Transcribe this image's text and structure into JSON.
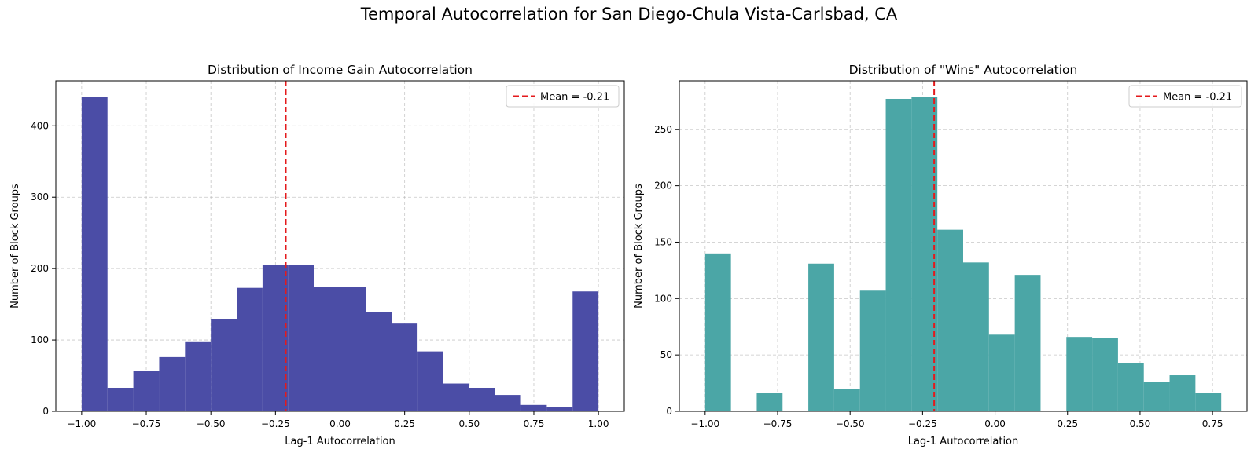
{
  "figure": {
    "title": "Temporal Autocorrelation for San Diego-Chula Vista-Carlsbad, CA"
  },
  "chart_data": [
    {
      "type": "bar",
      "title": "Distribution of Income Gain Autocorrelation",
      "xlabel": "Lag-1 Autocorrelation",
      "ylabel": "Number of Block Groups",
      "color": "#4b4da6",
      "bin_edges": [
        -1.0,
        -0.9,
        -0.8,
        -0.7,
        -0.6,
        -0.5,
        -0.4,
        -0.3,
        -0.2,
        -0.1,
        0.0,
        0.1,
        0.2,
        0.3,
        0.4,
        0.5,
        0.6,
        0.7,
        0.8,
        0.9,
        1.0
      ],
      "values": [
        441,
        33,
        57,
        76,
        97,
        129,
        173,
        205,
        205,
        174,
        174,
        139,
        123,
        84,
        39,
        33,
        23,
        9,
        6,
        168
      ],
      "xlim": [
        -1.1,
        1.1
      ],
      "ylim": [
        0,
        463
      ],
      "xticks": [
        -1.0,
        -0.75,
        -0.5,
        -0.25,
        0.0,
        0.25,
        0.5,
        0.75,
        1.0
      ],
      "xtick_labels": [
        "−1.00",
        "−0.75",
        "−0.50",
        "−0.25",
        "0.00",
        "0.25",
        "0.50",
        "0.75",
        "1.00"
      ],
      "yticks": [
        0,
        100,
        200,
        300,
        400
      ],
      "ytick_labels": [
        "0",
        "100",
        "200",
        "300",
        "400"
      ],
      "mean_line": {
        "x": -0.21,
        "color": "#e41a1c"
      },
      "legend": {
        "label": "Mean = -0.21",
        "position": "upper right"
      },
      "grid": true
    },
    {
      "type": "bar",
      "title": "Distribution of \"Wins\" Autocorrelation",
      "xlabel": "Lag-1 Autocorrelation",
      "ylabel": "Number of Block Groups",
      "color": "#4ba6a6",
      "bin_edges": [
        -1.0,
        -0.911,
        -0.822,
        -0.733,
        -0.644,
        -0.555,
        -0.466,
        -0.377,
        -0.288,
        -0.199,
        -0.11,
        -0.021,
        0.068,
        0.157,
        0.246,
        0.335,
        0.424,
        0.513,
        0.602,
        0.691,
        0.78
      ],
      "values": [
        140,
        0,
        16,
        0,
        131,
        20,
        107,
        277,
        279,
        161,
        132,
        68,
        121,
        0,
        66,
        65,
        43,
        26,
        32,
        16
      ],
      "xlim": [
        -1.089,
        0.869
      ],
      "ylim": [
        0,
        293
      ],
      "xticks": [
        -1.0,
        -0.75,
        -0.5,
        -0.25,
        0.0,
        0.25,
        0.5,
        0.75
      ],
      "xtick_labels": [
        "−1.00",
        "−0.75",
        "−0.50",
        "−0.25",
        "0.00",
        "0.25",
        "0.50",
        "0.75"
      ],
      "yticks": [
        0,
        50,
        100,
        150,
        200,
        250
      ],
      "ytick_labels": [
        "0",
        "50",
        "100",
        "150",
        "200",
        "250"
      ],
      "mean_line": {
        "x": -0.21,
        "color": "#e41a1c"
      },
      "legend": {
        "label": "Mean = -0.21",
        "position": "upper right"
      },
      "grid": true
    }
  ]
}
